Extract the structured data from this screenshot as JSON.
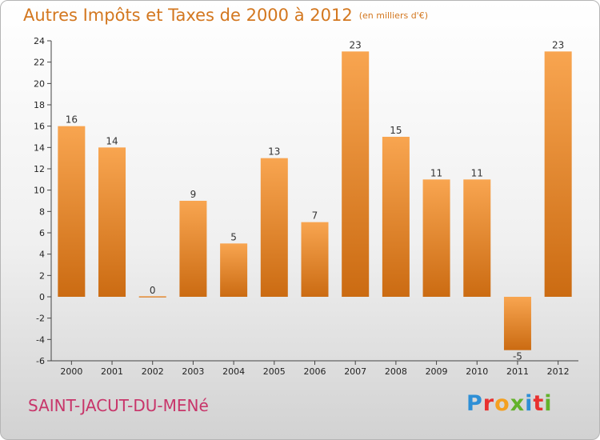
{
  "chart_data": {
    "type": "bar",
    "title": "Autres Impôts et Taxes de 2000 à 2012",
    "subtitle": "(en milliers d'€)",
    "categories": [
      "2000",
      "2001",
      "2002",
      "2003",
      "2004",
      "2005",
      "2006",
      "2007",
      "2008",
      "2009",
      "2010",
      "2011",
      "2012"
    ],
    "values": [
      16,
      14,
      0,
      9,
      5,
      13,
      7,
      23,
      15,
      11,
      11,
      -5,
      23
    ],
    "ylim": [
      -6,
      24
    ],
    "yticks": [
      -6,
      -4,
      -2,
      0,
      2,
      4,
      6,
      8,
      10,
      12,
      14,
      16,
      18,
      20,
      22,
      24
    ],
    "grid": false,
    "bar_color": "#f28d2a"
  },
  "location": "SAINT-JACUT-DU-MENé",
  "logo": [
    "P",
    "r",
    "o",
    "x",
    "i",
    "t",
    "i"
  ]
}
